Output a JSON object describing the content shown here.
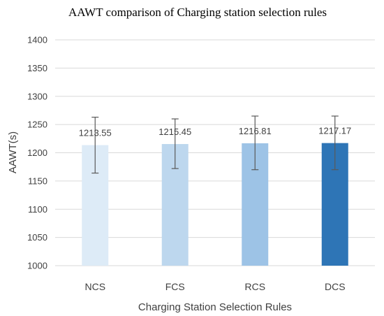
{
  "chart_data": {
    "type": "bar",
    "title": "AAWT comparison of Charging station selection rules",
    "xlabel": "Charging Station Selection Rules",
    "ylabel": "AAWT(s)",
    "categories": [
      "NCS",
      "FCS",
      "RCS",
      "DCS"
    ],
    "values": [
      1213.55,
      1215.45,
      1216.81,
      1217.17
    ],
    "data_labels": [
      "1213.55",
      "1215.45",
      "1216.81",
      "1217.17"
    ],
    "error_bars": [
      {
        "low": 1164,
        "high": 1263
      },
      {
        "low": 1172,
        "high": 1260
      },
      {
        "low": 1170,
        "high": 1265
      },
      {
        "low": 1170,
        "high": 1265
      }
    ],
    "bar_colors": [
      "#ddebf7",
      "#bdd7ee",
      "#9dc3e6",
      "#2e75b6"
    ],
    "ylim": [
      1000,
      1400
    ],
    "yticks": [
      "1000",
      "1050",
      "1100",
      "1150",
      "1200",
      "1250",
      "1300",
      "1350",
      "1400"
    ],
    "grid": true,
    "legend": "none"
  }
}
